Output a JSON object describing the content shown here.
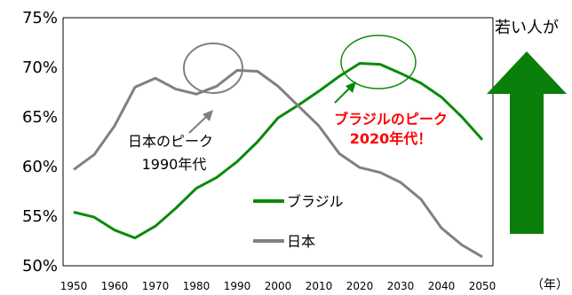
{
  "chart_data": {
    "type": "line",
    "x": [
      1950,
      1955,
      1960,
      1965,
      1970,
      1975,
      1980,
      1985,
      1990,
      1995,
      2000,
      2005,
      2010,
      2015,
      2020,
      2025,
      2030,
      2035,
      2040,
      2045,
      2050
    ],
    "series": [
      {
        "name": "ブラジル",
        "color": "#0a8a0a",
        "values": [
          55.4,
          54.9,
          53.6,
          52.8,
          54.0,
          55.8,
          57.8,
          58.9,
          60.5,
          62.5,
          64.9,
          66.2,
          67.6,
          69.1,
          70.4,
          70.3,
          69.4,
          68.4,
          67.0,
          65.0,
          62.7
        ]
      },
      {
        "name": "日本",
        "color": "#808080",
        "values": [
          59.7,
          61.2,
          64.1,
          68.0,
          68.9,
          67.8,
          67.3,
          68.1,
          69.7,
          69.6,
          68.1,
          66.1,
          64.1,
          61.3,
          59.9,
          59.4,
          58.4,
          56.7,
          53.8,
          52.1,
          50.9
        ]
      }
    ],
    "ylim": [
      50,
      75
    ],
    "yticks": [
      "50%",
      "55%",
      "60%",
      "65%",
      "70%",
      "75%"
    ],
    "xticks": [
      "1950",
      "1960",
      "1970",
      "1980",
      "1990",
      "2000",
      "2010",
      "2020",
      "2030",
      "2040",
      "2050"
    ],
    "xunit": "（年）",
    "grid": false,
    "legend_position": "bottom-center",
    "annotations": {
      "japan_peak": [
        "日本のピーク",
        "1990年代"
      ],
      "brazil_peak": [
        "ブラジルのピーク",
        "2020年代！"
      ]
    },
    "side_text": "若い人が",
    "arrow_color": "#0a7f0a"
  }
}
